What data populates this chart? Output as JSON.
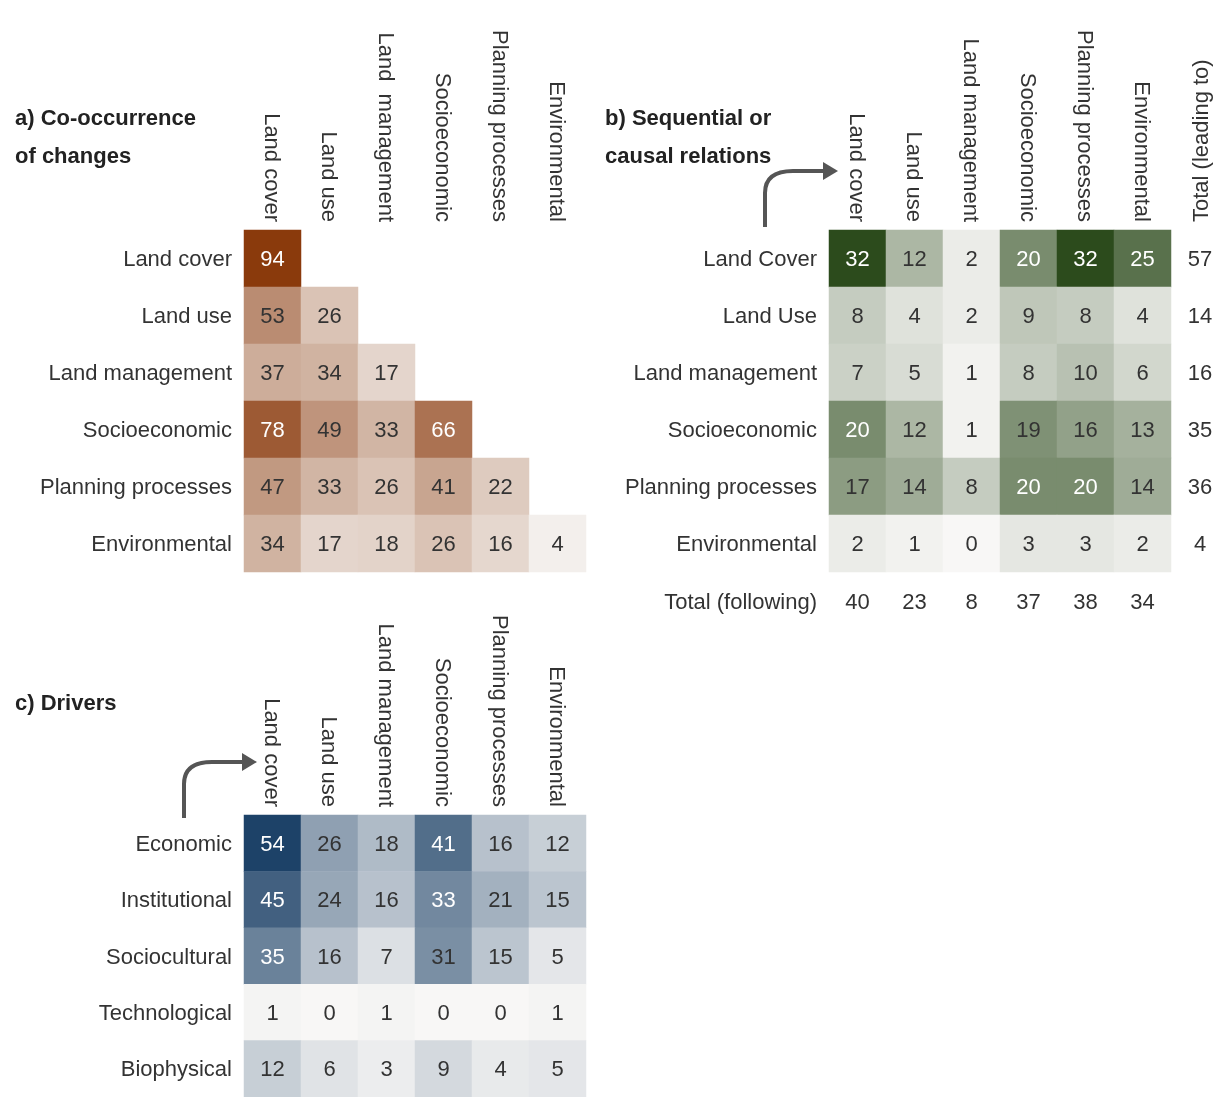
{
  "chart_data": [
    {
      "type": "heatmap",
      "title": "a) Co-occurrence of changes",
      "color": "#8a3a0c",
      "data_labels": true,
      "categories": [
        "Land cover",
        "Land use",
        "Land  management",
        "Socioeconomic",
        "Planning processes",
        "Environmental"
      ],
      "y_categories": [
        "Land cover",
        "Land use",
        "Land management",
        "Socioeconomic",
        "Planning processes",
        "Environmental"
      ],
      "cells": [
        [
          94,
          null,
          null,
          null,
          null,
          null
        ],
        [
          53,
          26,
          null,
          null,
          null,
          null
        ],
        [
          37,
          34,
          17,
          null,
          null,
          null
        ],
        [
          78,
          49,
          33,
          66,
          null,
          null
        ],
        [
          47,
          33,
          26,
          41,
          22,
          null
        ],
        [
          34,
          17,
          18,
          26,
          16,
          4
        ]
      ]
    },
    {
      "type": "heatmap",
      "title": "b) Sequential or causal relations",
      "color": "#2c4b1c",
      "data_labels": true,
      "categories": [
        "Land cover",
        "Land use",
        "Land management",
        "Socioeconomic",
        "Planning processes",
        "Environmental"
      ],
      "y_categories": [
        "Land Cover",
        "Land Use",
        "Land management",
        "Socioeconomic",
        "Planning processes",
        "Environmental"
      ],
      "cells": [
        [
          32,
          12,
          2,
          20,
          32,
          25
        ],
        [
          8,
          4,
          2,
          9,
          8,
          4
        ],
        [
          7,
          5,
          1,
          8,
          10,
          6
        ],
        [
          20,
          12,
          1,
          19,
          16,
          13
        ],
        [
          17,
          14,
          8,
          20,
          20,
          14
        ],
        [
          2,
          1,
          0,
          3,
          3,
          2
        ]
      ],
      "y2_categories": [
        "57",
        "14",
        "16",
        "35",
        "36",
        "4"
      ],
      "totals": [
        "40",
        "23",
        "8",
        "37",
        "38",
        "34"
      ],
      "annotations": [
        "Total (leading to)",
        "Total (following)"
      ]
    },
    {
      "type": "heatmap",
      "title": "c) Drivers",
      "color": "#1d4268",
      "data_labels": true,
      "categories": [
        "Land cover",
        "Land use",
        "Land management",
        "Socioeconomic",
        "Planning processes",
        "Environmental"
      ],
      "y_categories": [
        "Economic",
        "Institutional",
        "Sociocultural",
        "Technological",
        "Biophysical"
      ],
      "cells": [
        [
          54,
          26,
          18,
          41,
          16,
          12
        ],
        [
          45,
          24,
          16,
          33,
          21,
          15
        ],
        [
          35,
          16,
          7,
          31,
          15,
          5
        ],
        [
          1,
          0,
          1,
          0,
          0,
          1
        ],
        [
          12,
          6,
          3,
          9,
          4,
          5
        ]
      ]
    }
  ]
}
